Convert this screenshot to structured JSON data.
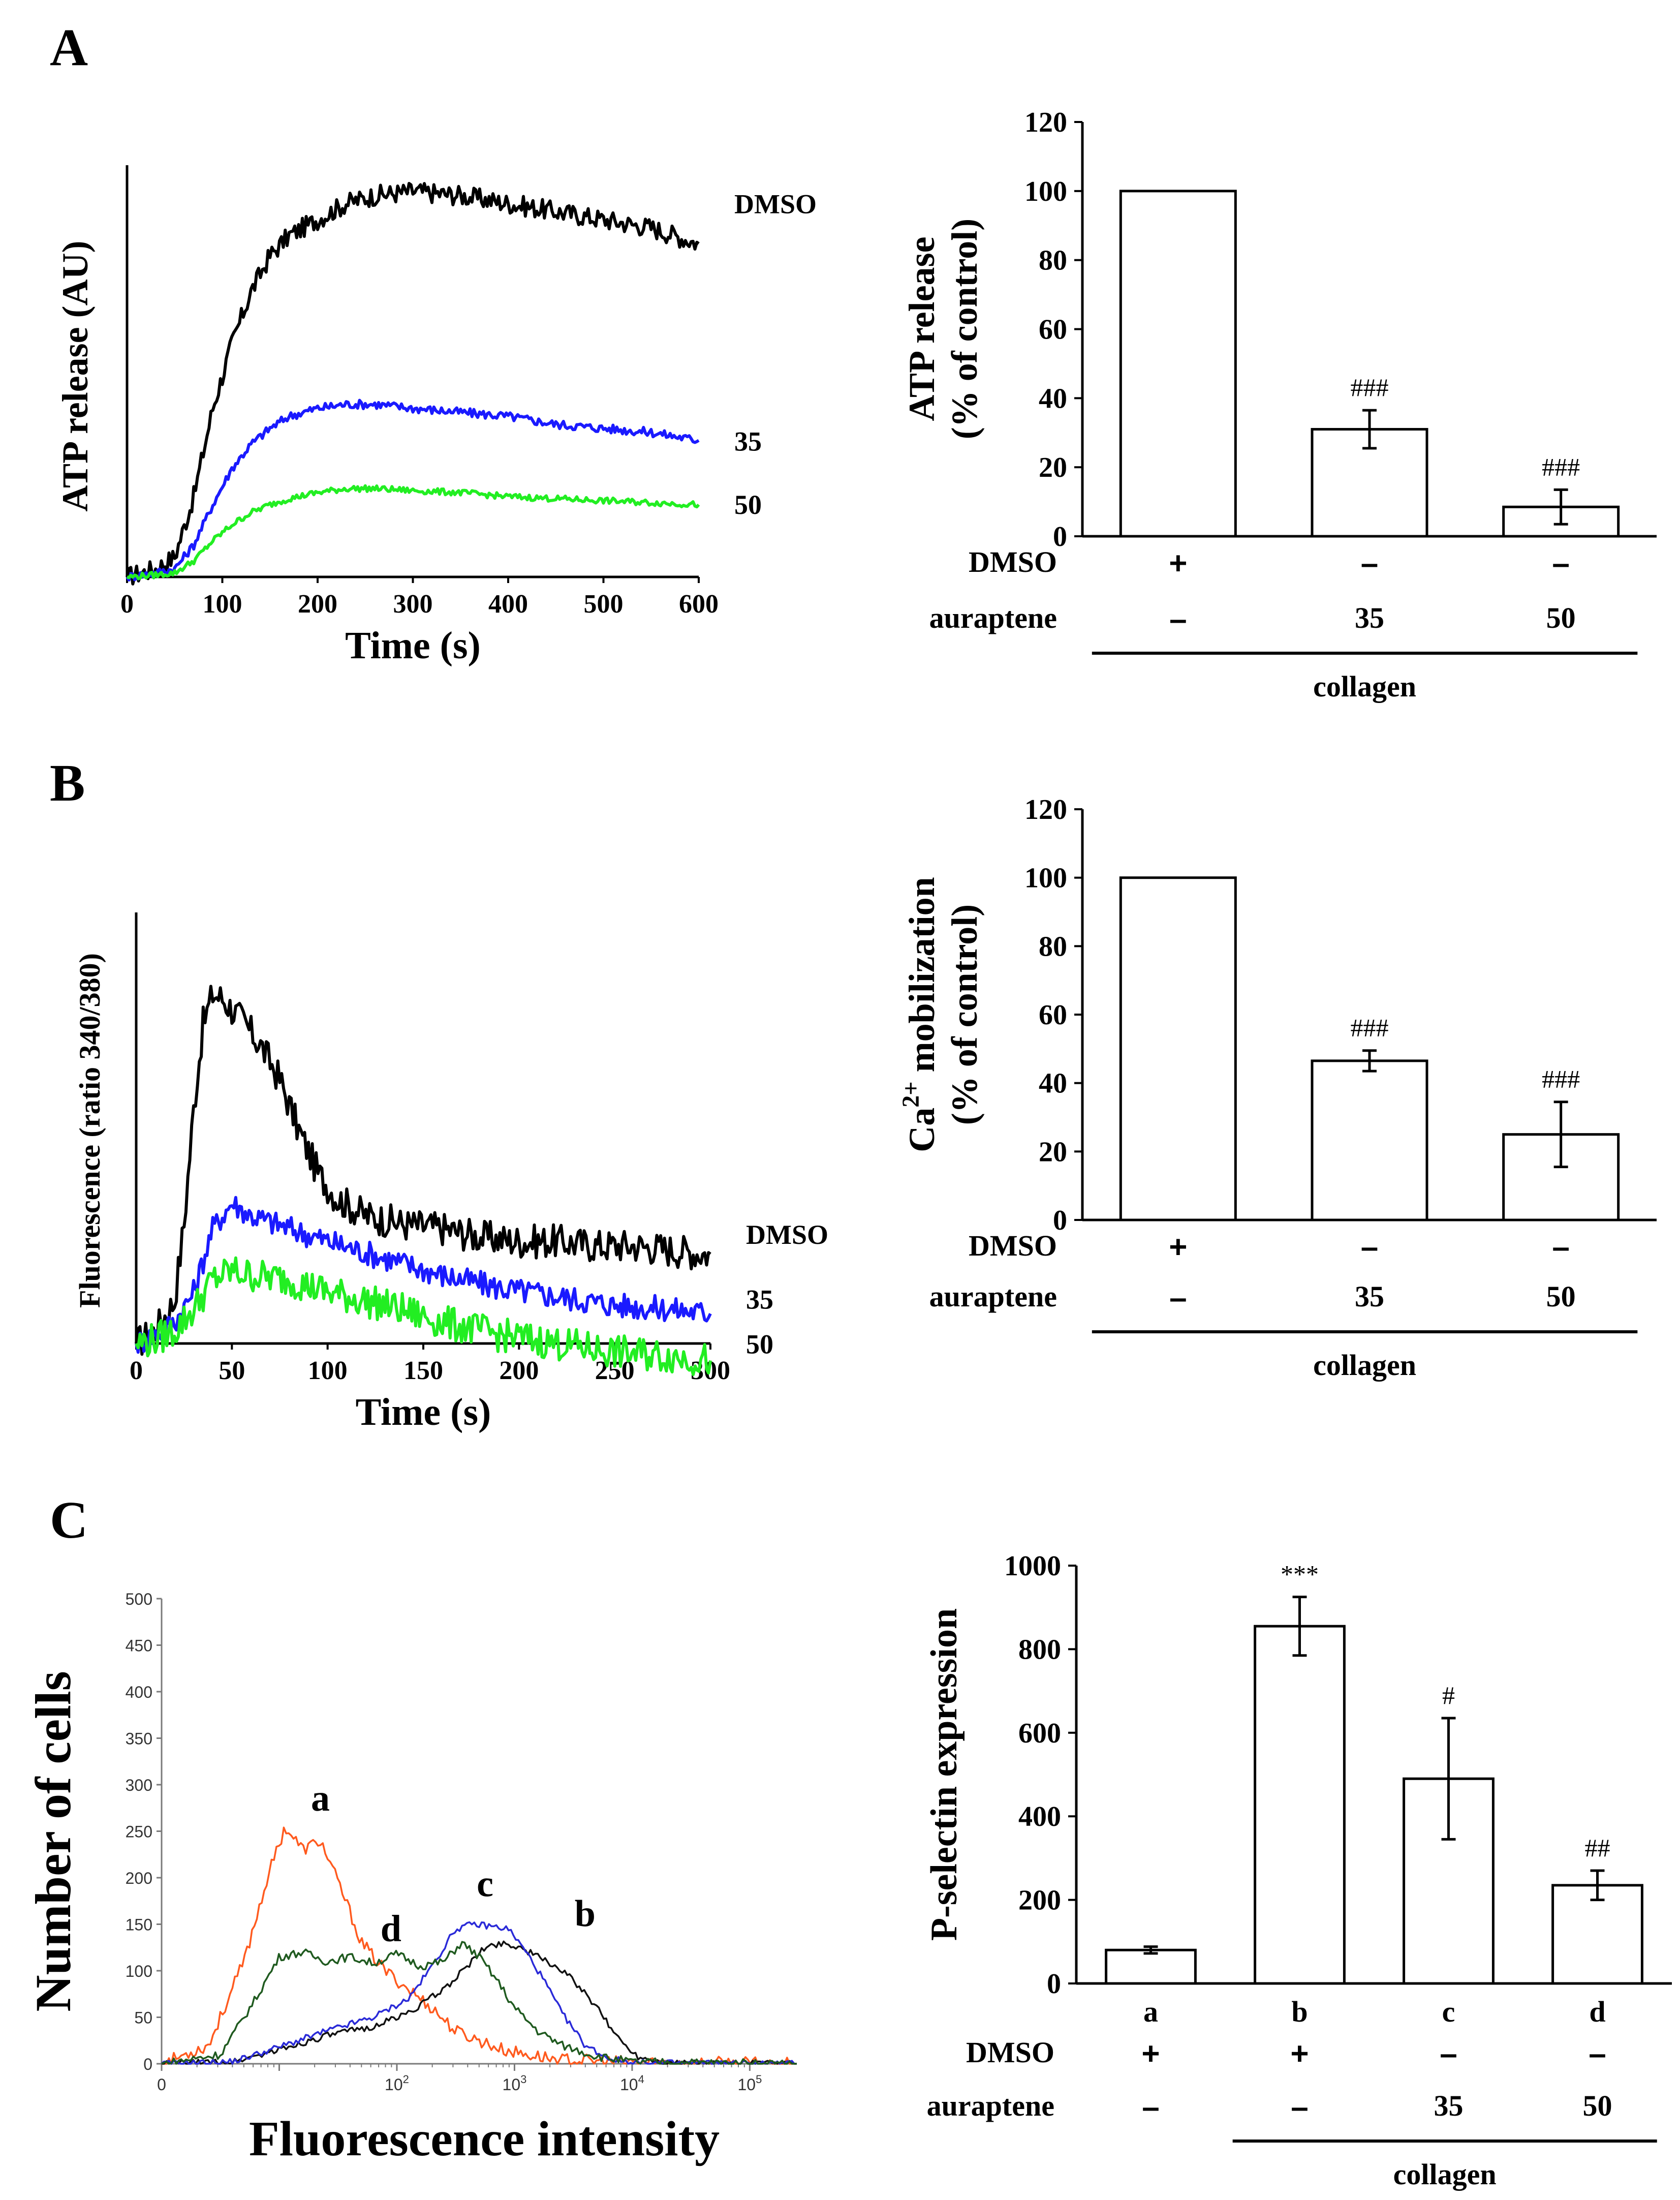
{
  "panels": {
    "A": {
      "letter": "A"
    },
    "B": {
      "letter": "B"
    },
    "C": {
      "letter": "C"
    }
  },
  "colors": {
    "dmso": "#000000",
    "dose35": "#1a1aff",
    "dose50": "#22ee22",
    "hist_a": "#ff5a1e",
    "hist_b": "#111111",
    "hist_c": "#2a2ad8",
    "hist_d": "#1f5a1f"
  },
  "chart_data": [
    {
      "id": "A-trace",
      "type": "line",
      "title": "",
      "xlabel": "Time (s)",
      "ylabel": "ATP release (AU)",
      "xlim": [
        0,
        600
      ],
      "ylim": [
        0,
        100
      ],
      "xticks": [
        0,
        100,
        200,
        300,
        400,
        500,
        600
      ],
      "yticks": [],
      "series": [
        {
          "name": "DMSO",
          "color_key": "dmso",
          "x": [
            0,
            30,
            50,
            70,
            90,
            110,
            130,
            150,
            170,
            200,
            230,
            260,
            300,
            350,
            400,
            450,
            500,
            550,
            600
          ],
          "y": [
            0,
            2,
            5,
            20,
            42,
            58,
            71,
            80,
            85,
            89,
            93,
            95,
            96,
            95,
            93,
            91,
            89,
            87,
            83
          ]
        },
        {
          "name": "35",
          "color_key": "dose35",
          "x": [
            0,
            30,
            50,
            70,
            90,
            110,
            130,
            150,
            170,
            200,
            230,
            260,
            300,
            350,
            400,
            450,
            500,
            550,
            600
          ],
          "y": [
            0,
            1,
            2,
            8,
            18,
            27,
            33,
            37,
            40,
            42,
            43,
            43,
            42,
            41,
            40,
            38,
            37,
            36,
            34
          ]
        },
        {
          "name": "50",
          "color_key": "dose50",
          "x": [
            0,
            30,
            50,
            70,
            90,
            110,
            130,
            150,
            170,
            200,
            230,
            260,
            300,
            350,
            400,
            450,
            500,
            550,
            600
          ],
          "y": [
            0,
            0.5,
            1,
            4,
            9,
            13,
            16,
            18,
            19.5,
            21,
            22,
            22,
            21.5,
            21,
            20,
            19.5,
            19,
            18.5,
            18
          ]
        }
      ],
      "series_labels": [
        "DMSO",
        "35",
        "50"
      ]
    },
    {
      "id": "A-bar",
      "type": "bar",
      "title": "",
      "ylabel": "ATP release (% of control)",
      "ylim": [
        0,
        120
      ],
      "yticks": [
        0,
        20,
        40,
        60,
        80,
        100,
        120
      ],
      "values": [
        100,
        31,
        8.5
      ],
      "errors": [
        0,
        5.5,
        5
      ],
      "annotations": [
        "",
        "###",
        "###"
      ],
      "letters": [],
      "rows": [
        {
          "label": "DMSO",
          "cells": [
            "+",
            "–",
            "–"
          ]
        },
        {
          "label": "auraptene",
          "cells": [
            "–",
            "35",
            "50"
          ]
        }
      ],
      "group_label": "collagen",
      "group_start": 0
    },
    {
      "id": "B-trace",
      "type": "line",
      "title": "",
      "xlabel": "Time (s)",
      "ylabel": "Fluorescence (ratio 340/380)",
      "xlim": [
        0,
        300
      ],
      "ylim": [
        0,
        100
      ],
      "xticks": [
        0,
        50,
        100,
        150,
        200,
        250,
        300
      ],
      "yticks": [],
      "series": [
        {
          "name": "DMSO",
          "color_key": "dmso",
          "x": [
            0,
            10,
            20,
            25,
            30,
            35,
            40,
            45,
            55,
            65,
            75,
            85,
            95,
            105,
            120,
            140,
            160,
            180,
            200,
            220,
            240,
            260,
            280,
            300
          ],
          "y": [
            0,
            3,
            10,
            28,
            55,
            75,
            82,
            81,
            76,
            70,
            62,
            50,
            40,
            34,
            30,
            28,
            27,
            25,
            24,
            24,
            23,
            23,
            22,
            21
          ]
        },
        {
          "name": "35",
          "color_key": "dose35",
          "x": [
            0,
            10,
            20,
            30,
            40,
            50,
            60,
            80,
            100,
            130,
            160,
            190,
            220,
            250,
            280,
            300
          ],
          "y": [
            0,
            2,
            5,
            12,
            27,
            33,
            30,
            27,
            24,
            20,
            16,
            13,
            11,
            9,
            8,
            7
          ]
        },
        {
          "name": "50",
          "color_key": "dose50",
          "x": [
            0,
            10,
            20,
            30,
            40,
            50,
            60,
            80,
            100,
            130,
            160,
            190,
            220,
            250,
            280,
            300
          ],
          "y": [
            0,
            1,
            3,
            8,
            15,
            17,
            16,
            15,
            12,
            9,
            5,
            2,
            0,
            -2,
            -3,
            -4
          ]
        }
      ],
      "series_labels": [
        "DMSO",
        "35",
        "50"
      ]
    },
    {
      "id": "B-bar",
      "type": "bar",
      "title": "",
      "ylabel": "Ca2+ mobilization (% of control)",
      "ylabel_line1_base": "Ca",
      "ylabel_line1_sup": "2+",
      "ylabel_line1_rest": " mobilization",
      "ylabel_line2": "(% of control)",
      "ylim": [
        0,
        120
      ],
      "yticks": [
        0,
        20,
        40,
        60,
        80,
        100,
        120
      ],
      "values": [
        100,
        46.5,
        25
      ],
      "errors": [
        0,
        3,
        9.5
      ],
      "annotations": [
        "",
        "###",
        "###"
      ],
      "letters": [],
      "rows": [
        {
          "label": "DMSO",
          "cells": [
            "+",
            "–",
            "–"
          ]
        },
        {
          "label": "auraptene",
          "cells": [
            "–",
            "35",
            "50"
          ]
        }
      ],
      "group_label": "collagen",
      "group_start": 0
    },
    {
      "id": "C-hist",
      "type": "line",
      "title": "",
      "xlabel": "Fluorescence intensity",
      "ylabel": "Number of cells",
      "xscale": "log",
      "xlim_log": [
        0,
        5.4
      ],
      "ylim": [
        0,
        500
      ],
      "yticks": [
        0,
        50,
        100,
        150,
        200,
        250,
        300,
        350,
        400,
        450,
        500
      ],
      "xticks": [
        {
          "pos": 2,
          "base": "10",
          "exp": "2"
        },
        {
          "pos": 3,
          "base": "10",
          "exp": "3"
        },
        {
          "pos": 4,
          "base": "10",
          "exp": "4"
        },
        {
          "pos": 5,
          "base": "10",
          "exp": "5"
        }
      ],
      "series": [
        {
          "name": "a",
          "color_key": "hist_a",
          "logx": [
            0,
            0.4,
            0.7,
            0.9,
            1.05,
            1.2,
            1.35,
            1.45,
            1.55,
            1.7,
            1.9,
            2.1,
            2.3,
            2.5,
            2.7,
            2.9,
            3.1,
            3.4,
            3.8,
            4.3,
            5.4
          ],
          "y": [
            0,
            20,
            110,
            200,
            255,
            230,
            240,
            210,
            180,
            130,
            100,
            80,
            60,
            35,
            25,
            15,
            10,
            4,
            2,
            1,
            0
          ]
        },
        {
          "name": "b",
          "color_key": "hist_b",
          "logx": [
            0,
            0.6,
            1.0,
            1.4,
            1.8,
            2.1,
            2.4,
            2.6,
            2.75,
            2.9,
            3.05,
            3.2,
            3.35,
            3.5,
            3.7,
            3.9,
            4.05,
            4.3,
            5.4
          ],
          "y": [
            0,
            2,
            15,
            30,
            40,
            55,
            80,
            105,
            125,
            130,
            125,
            115,
            105,
            90,
            60,
            25,
            8,
            1,
            0
          ]
        },
        {
          "name": "c",
          "color_key": "hist_c",
          "logx": [
            0,
            0.6,
            1.0,
            1.4,
            1.8,
            2.1,
            2.3,
            2.5,
            2.65,
            2.8,
            2.95,
            3.1,
            3.25,
            3.4,
            3.6,
            3.8,
            4.0,
            5.4
          ],
          "y": [
            0,
            2,
            18,
            35,
            50,
            70,
            105,
            145,
            150,
            148,
            145,
            120,
            90,
            55,
            20,
            6,
            1,
            0
          ]
        },
        {
          "name": "d",
          "color_key": "hist_d",
          "logx": [
            0,
            0.5,
            0.8,
            1.0,
            1.2,
            1.4,
            1.6,
            1.8,
            2.0,
            2.2,
            2.4,
            2.55,
            2.7,
            2.85,
            3.0,
            3.2,
            3.4,
            3.7,
            4.0,
            5.4
          ],
          "y": [
            0,
            10,
            70,
            115,
            120,
            110,
            115,
            108,
            118,
            105,
            110,
            130,
            115,
            90,
            60,
            35,
            20,
            8,
            2,
            0
          ]
        }
      ],
      "series_labels": [
        "a",
        "b",
        "c",
        "d"
      ]
    },
    {
      "id": "C-bar",
      "type": "bar",
      "title": "",
      "ylabel": "P-selectin expression",
      "ylim": [
        0,
        1000
      ],
      "yticks": [
        0,
        200,
        400,
        600,
        800,
        1000
      ],
      "values": [
        80,
        855,
        490,
        235
      ],
      "errors": [
        8,
        70,
        145,
        35
      ],
      "annotations": [
        "",
        "***",
        "#",
        "##"
      ],
      "letters": [
        "a",
        "b",
        "c",
        "d"
      ],
      "rows": [
        {
          "label": "DMSO",
          "cells": [
            "+",
            "+",
            "–",
            "–"
          ]
        },
        {
          "label": "auraptene",
          "cells": [
            "–",
            "–",
            "35",
            "50"
          ]
        }
      ],
      "group_label": "collagen",
      "group_start": 1
    }
  ]
}
